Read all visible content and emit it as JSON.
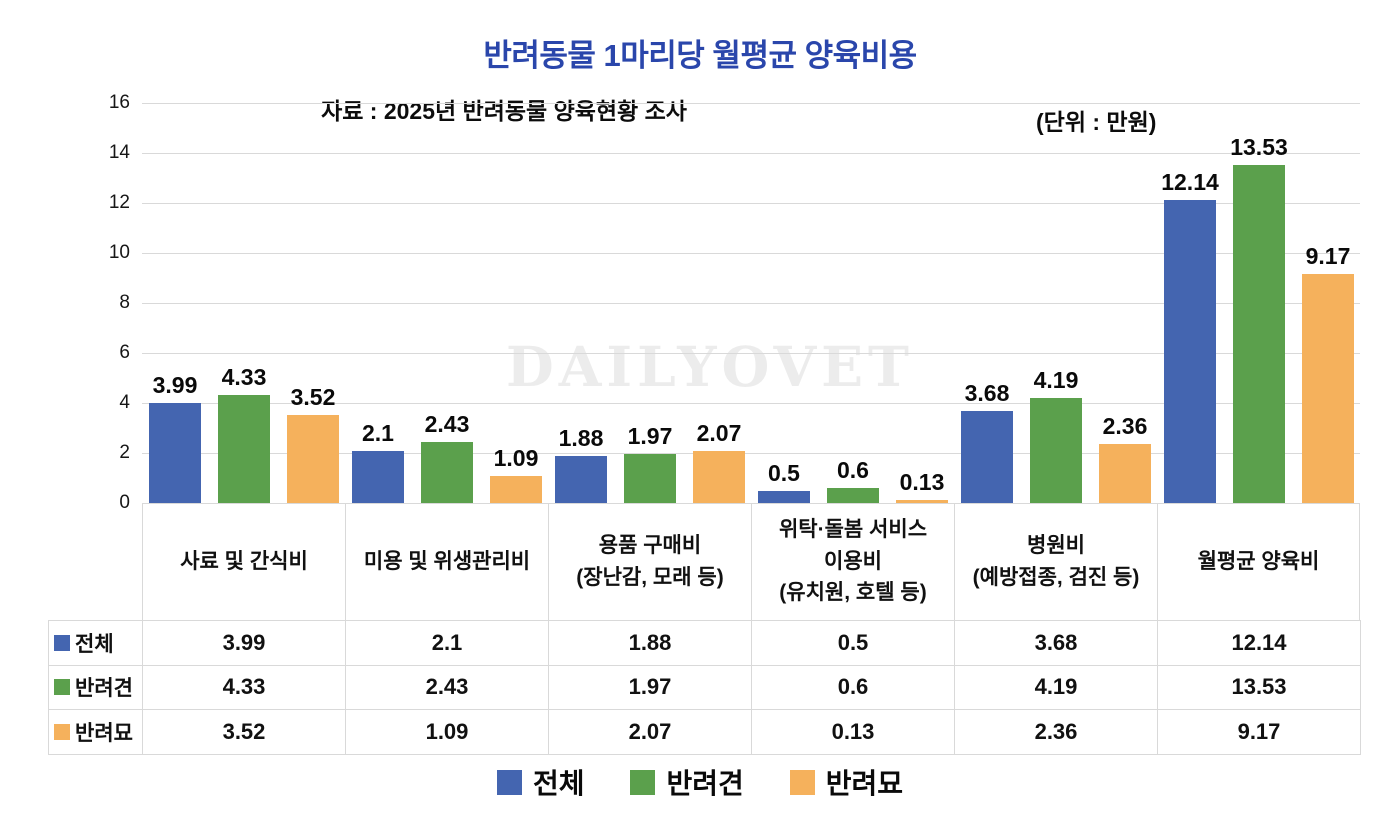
{
  "page": {
    "title": "반려동물 1마리당 월평균 양육비용",
    "subtitle": "자료 : 2025년 반려동물 양육현황 조사",
    "unit_label": "(단위 : 만원)",
    "watermark": "DAILYOVET"
  },
  "colors": {
    "title_text": "#2a46ab",
    "gridline": "#d9d9d9",
    "watermark": "#ececec",
    "series_total": "#4465b0",
    "series_dog": "#5ba04c",
    "series_cat": "#f5b15c"
  },
  "chart_data": {
    "type": "bar",
    "title": "반려동물 1마리당 월평균 양육비용",
    "subtitle": "자료 : 2025년 반려동물 양육현황 조사",
    "unit": "만원",
    "categories": [
      "사료 및 간식비",
      "미용 및 위생관리비",
      "용품 구매비\n(장난감, 모래 등)",
      "위탁·돌봄 서비스\n이용비\n(유치원, 호텔 등)",
      "병원비\n(예방접종, 검진 등)",
      "월평균 양육비"
    ],
    "series": [
      {
        "name": "전체",
        "color": "#4465b0",
        "values": [
          3.99,
          2.1,
          1.88,
          0.5,
          3.68,
          12.14
        ]
      },
      {
        "name": "반려견",
        "color": "#5ba04c",
        "values": [
          4.33,
          2.43,
          1.97,
          0.6,
          4.19,
          13.53
        ]
      },
      {
        "name": "반려묘",
        "color": "#f5b15c",
        "values": [
          3.52,
          1.09,
          2.07,
          0.13,
          2.36,
          9.17
        ]
      }
    ],
    "ylim": [
      0,
      16
    ],
    "ytick_step": 2,
    "yticks": [
      0,
      2,
      4,
      6,
      8,
      10,
      12,
      14,
      16
    ],
    "grid": true,
    "value_labels": true,
    "legend_position": "bottom",
    "data_table_shown": true
  }
}
